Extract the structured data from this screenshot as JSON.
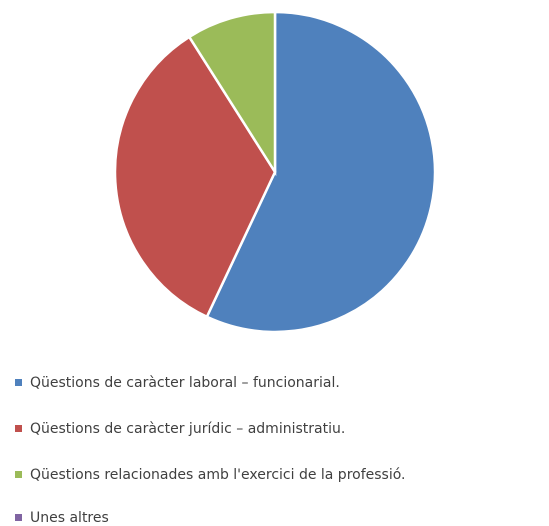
{
  "chart_data": {
    "type": "pie",
    "categories": [
      "Qüestions de caràcter laboral – funcionarial.",
      "Qüestions de caràcter jurídic – administratiu.",
      "Qüestions relacionades amb l'exercici de la professió.",
      "Unes altres"
    ],
    "values": [
      57,
      34,
      9,
      0
    ],
    "colors": [
      "#4f81bd",
      "#c0504d",
      "#9bbb59",
      "#8064a2"
    ],
    "legend": "bottom"
  }
}
